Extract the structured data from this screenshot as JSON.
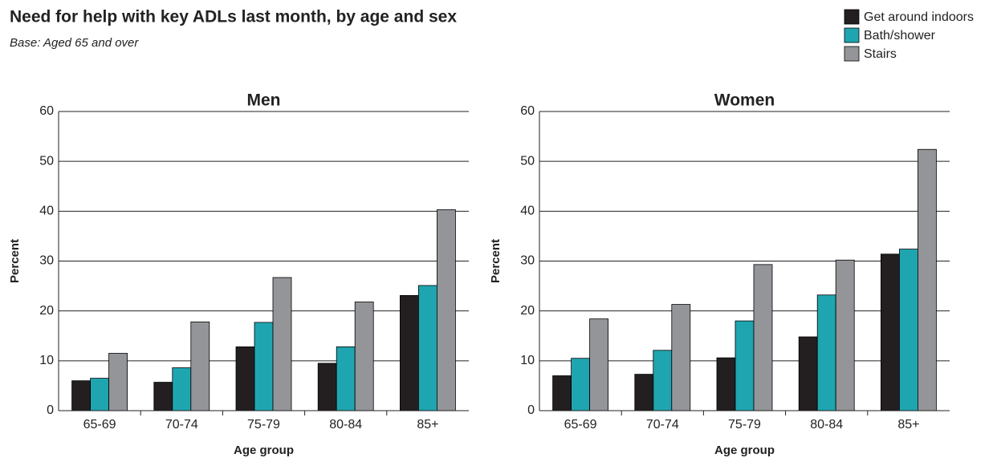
{
  "title": "Need for help with key ADLs last month, by age and sex",
  "subtitle": "Base: Aged 65 and over",
  "legend": "top-right",
  "chart_data": [
    {
      "type": "bar",
      "title": "Men",
      "xlabel": "Age group",
      "ylabel": "Percent",
      "categories": [
        "65-69",
        "70-74",
        "75-79",
        "80-84",
        "85+"
      ],
      "series": [
        {
          "name": "Get around indoors",
          "color": "#231f20",
          "values": [
            6,
            5.7,
            12.8,
            9.5,
            23.1
          ]
        },
        {
          "name": "Bath/shower",
          "color": "#1fa5b0",
          "values": [
            6.5,
            8.6,
            17.7,
            12.8,
            25.1
          ]
        },
        {
          "name": "Stairs",
          "color": "#939598",
          "values": [
            11.5,
            17.8,
            26.7,
            21.8,
            40.3
          ]
        }
      ],
      "ylim": [
        0,
        60
      ],
      "yticks": [
        0,
        10,
        20,
        30,
        40,
        50,
        60
      ],
      "grid": true
    },
    {
      "type": "bar",
      "title": "Women",
      "xlabel": "Age group",
      "ylabel": "Percent",
      "categories": [
        "65-69",
        "70-74",
        "75-79",
        "80-84",
        "85+"
      ],
      "series": [
        {
          "name": "Get around indoors",
          "color": "#231f20",
          "values": [
            7,
            7.3,
            10.6,
            14.8,
            31.4
          ]
        },
        {
          "name": "Bath/shower",
          "color": "#1fa5b0",
          "values": [
            10.5,
            12.1,
            18,
            23.2,
            32.4
          ]
        },
        {
          "name": "Stairs",
          "color": "#939598",
          "values": [
            18.4,
            21.3,
            29.3,
            30.2,
            52.4
          ]
        }
      ],
      "ylim": [
        0,
        60
      ],
      "yticks": [
        0,
        10,
        20,
        30,
        40,
        50,
        60
      ],
      "grid": true
    }
  ]
}
